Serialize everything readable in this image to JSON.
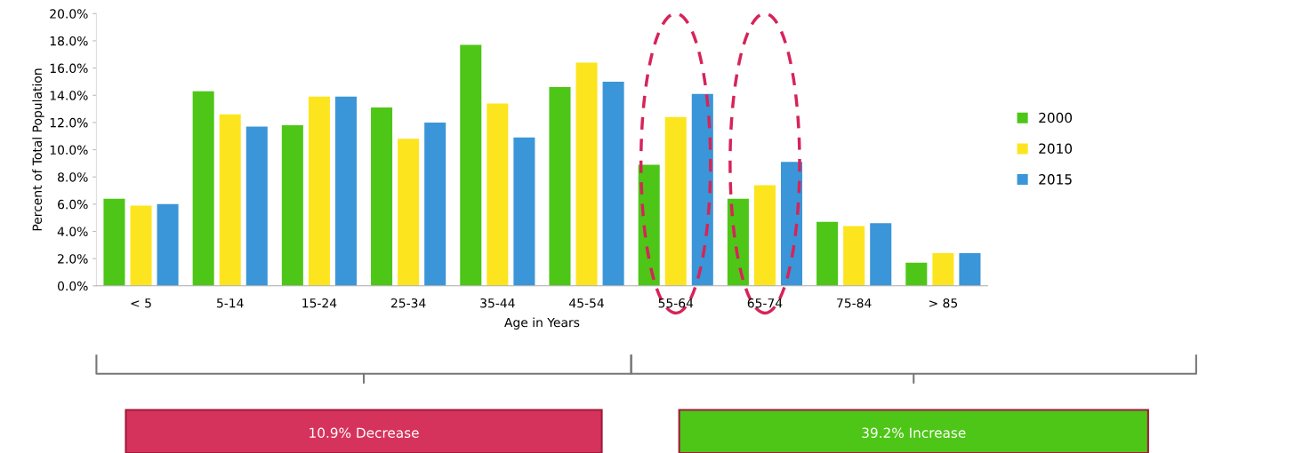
{
  "chart_data": {
    "type": "bar",
    "xlabel": "Age in Years",
    "ylabel": "Percent of Total Population",
    "categories": [
      "< 5",
      "5-14",
      "15-24",
      "25-34",
      "35-44",
      "45-54",
      "55-64",
      "65-74",
      "75-84",
      "> 85"
    ],
    "series": [
      {
        "name": "2000",
        "color": "#4ec617",
        "values": [
          6.4,
          14.3,
          11.8,
          13.1,
          17.7,
          14.6,
          8.9,
          6.4,
          4.7,
          1.7
        ]
      },
      {
        "name": "2010",
        "color": "#fce51e",
        "values": [
          5.9,
          12.6,
          13.9,
          10.8,
          13.4,
          16.4,
          12.4,
          7.4,
          4.4,
          2.4
        ]
      },
      {
        "name": "2015",
        "color": "#3a96d8",
        "values": [
          6.0,
          11.7,
          13.9,
          12.0,
          10.9,
          15.0,
          14.1,
          9.1,
          4.6,
          2.4
        ]
      }
    ],
    "ylim": [
      0,
      20
    ],
    "yticks": [
      {
        "value": 0,
        "label": "0.0%"
      },
      {
        "value": 2,
        "label": "2.0%"
      },
      {
        "value": 4,
        "label": "4.0%"
      },
      {
        "value": 6,
        "label": "6.0%"
      },
      {
        "value": 8,
        "label": "8.0%"
      },
      {
        "value": 10,
        "label": "10.0%"
      },
      {
        "value": 12,
        "label": "12.0%"
      },
      {
        "value": 14,
        "label": "14.0%"
      },
      {
        "value": 16,
        "label": "16.0%"
      },
      {
        "value": 18,
        "label": "18.0%"
      },
      {
        "value": 20,
        "label": "20.0%"
      }
    ],
    "legend": "right",
    "annotations": [
      "10.9% Decrease",
      "39.2% Increase"
    ]
  }
}
